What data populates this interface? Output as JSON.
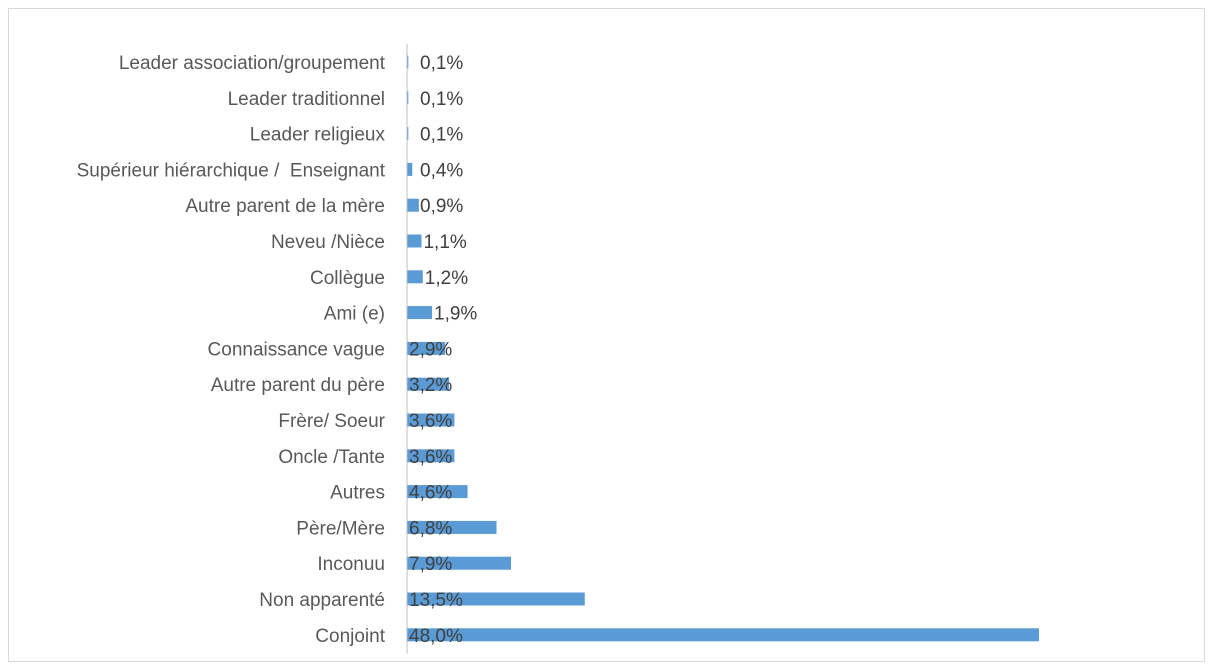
{
  "chart_data": {
    "type": "bar",
    "orientation": "horizontal",
    "categories": [
      "Leader association/groupement",
      "Leader traditionnel",
      "Leader religieux",
      "Supérieur hiérarchique /  Enseignant",
      "Autre parent de la mère",
      "Neveu /Nièce",
      "Collègue",
      "Ami (e)",
      "Connaissance vague",
      "Autre parent du père",
      "Frère/ Soeur",
      "Oncle /Tante",
      "Autres",
      "Père/Mère",
      "Inconuu",
      "Non apparenté",
      "Conjoint"
    ],
    "values": [
      0.1,
      0.1,
      0.1,
      0.4,
      0.9,
      1.1,
      1.2,
      1.9,
      2.9,
      3.2,
      3.6,
      3.6,
      4.6,
      6.8,
      7.9,
      13.5,
      48.0
    ],
    "value_labels": [
      "0,1%",
      "0,1%",
      "0,1%",
      "0,4%",
      "0,9%",
      "1,1%",
      "1,2%",
      "1,9%",
      "2,9%",
      "3,2%",
      "3,6%",
      "3,6%",
      "4,6%",
      "6,8%",
      "7,9%",
      "13,5%",
      "48,0%"
    ],
    "title": "",
    "xlabel": "",
    "ylabel": "",
    "xlim": [
      0,
      48.0
    ],
    "grid": false,
    "legend": "none",
    "colors": {
      "bar": "#5b9bd5",
      "axis": "#bfbfbf",
      "category_text": "#595959",
      "value_text": "#404040",
      "frame": "#d9d9d9"
    }
  }
}
